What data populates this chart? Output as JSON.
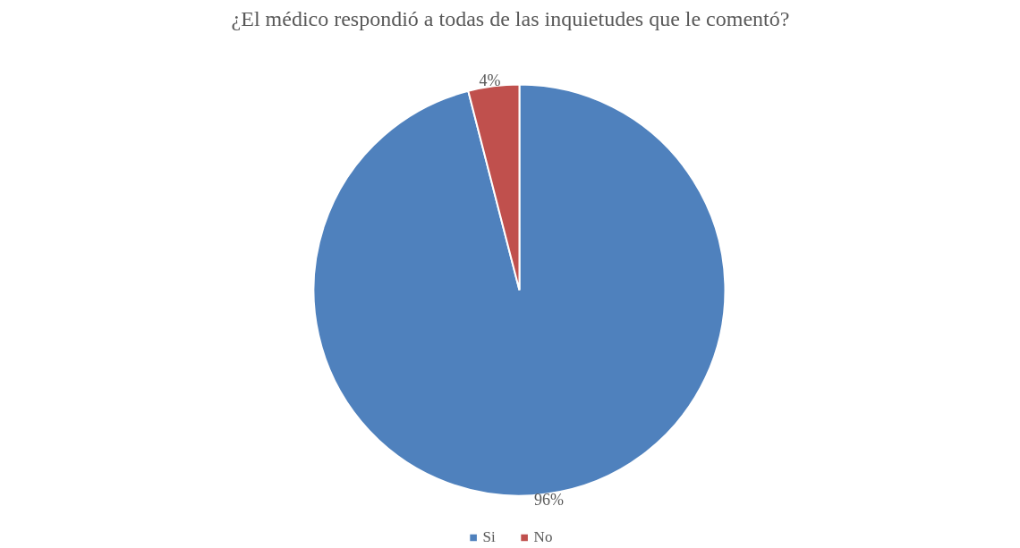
{
  "chart_data": {
    "type": "pie",
    "title": "¿El médico respondió a todas de las inquietudes que le comentó?",
    "categories": [
      "Si",
      "No"
    ],
    "values": [
      96,
      4
    ],
    "colors": [
      "#4f81bd",
      "#c0504d"
    ],
    "value_labels": [
      "96%",
      "4%"
    ],
    "legend": "bottom"
  }
}
